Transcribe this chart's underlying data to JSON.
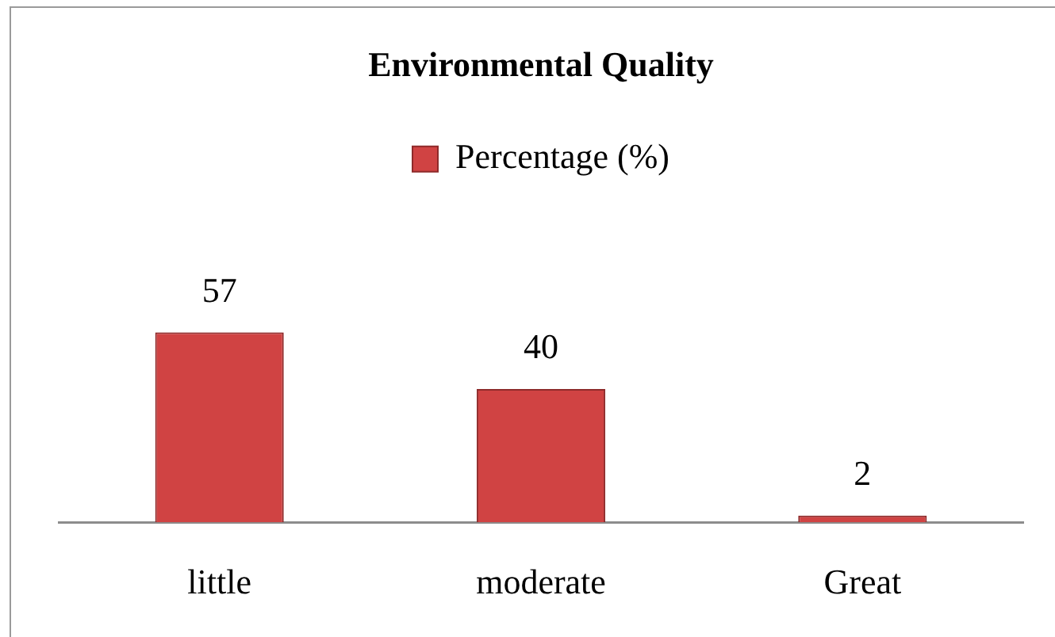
{
  "chart_data": {
    "type": "bar",
    "title": "Environmental Quality",
    "categories": [
      "little",
      "moderate",
      "Great"
    ],
    "series": [
      {
        "name": "Percentage (%)",
        "color": "#d04343",
        "values": [
          57,
          40,
          2
        ]
      }
    ],
    "data_labels": true,
    "legend": "top",
    "grid": false,
    "tick_labels": "x"
  }
}
